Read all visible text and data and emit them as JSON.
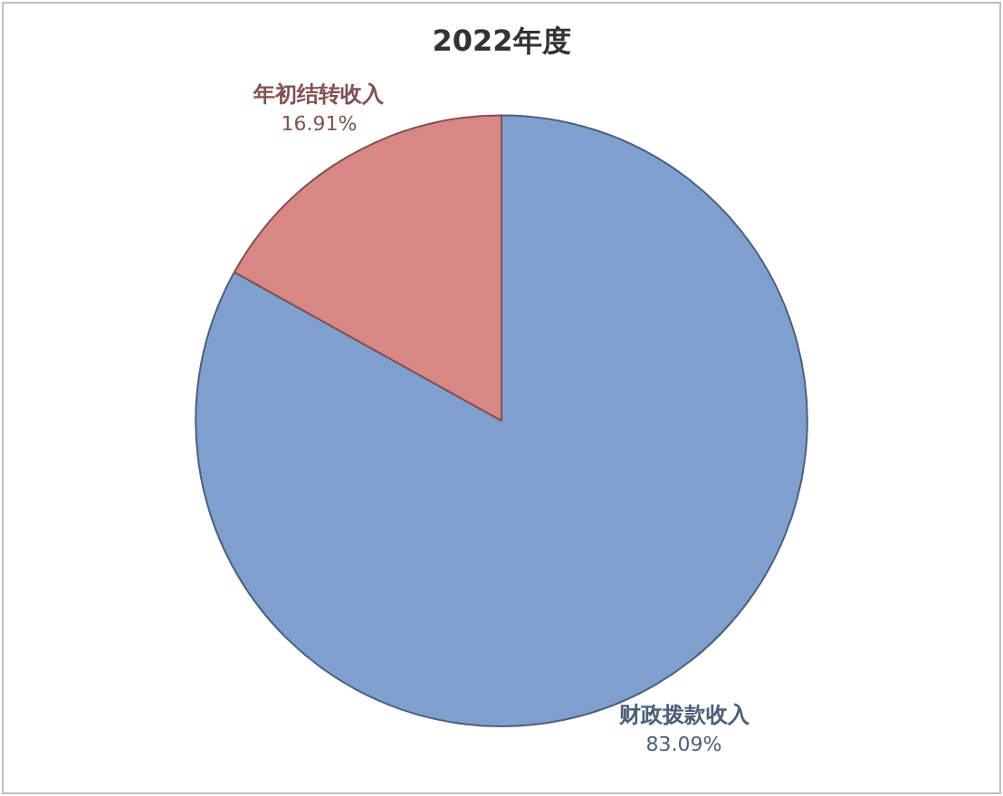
{
  "chart_data": {
    "type": "pie",
    "title": "2022年度",
    "categories": [
      "财政拨款收入",
      "年初结转收入"
    ],
    "values": [
      83.09,
      16.91
    ],
    "colors": [
      "#7fa0cf",
      "#d88785"
    ],
    "value_labels": [
      "83.09%",
      "16.91%"
    ],
    "legend": false
  }
}
